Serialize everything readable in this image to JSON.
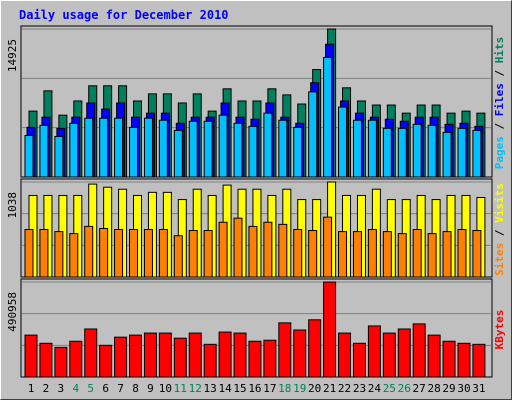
{
  "title": "Daily usage for December 2010",
  "legend_separator": " / ",
  "chart_data": [
    {
      "type": "bar",
      "ylim": [
        0,
        14925
      ],
      "yticks": [
        14925
      ],
      "series": [
        {
          "name": "Pages",
          "color": "#00C0FF",
          "values": [
            4190,
            5212,
            4088,
            5417,
            5928,
            5928,
            5928,
            5008,
            5928,
            5723,
            4701,
            5621,
            5621,
            6234,
            5417,
            5110,
            6439,
            5723,
            5008,
            8585,
            12060,
            7052,
            5723,
            5723,
            4906,
            4906,
            5314,
            5212,
            4497,
            4906,
            4701
          ]
        },
        {
          "name": "Files",
          "color": "#0000FF",
          "values": [
            5008,
            6030,
            4906,
            6030,
            7461,
            6847,
            7461,
            6030,
            6439,
            6439,
            5417,
            6030,
            6030,
            7461,
            6030,
            5825,
            7461,
            6030,
            5417,
            9505,
            13388,
            7665,
            6439,
            6030,
            5825,
            5621,
            6030,
            6030,
            5314,
            5417,
            5110
          ]
        },
        {
          "name": "Hits",
          "color": "#00805C",
          "values": [
            6645,
            8690,
            6236,
            7667,
            9200,
            9200,
            9200,
            7667,
            8383,
            8383,
            7463,
            8383,
            6645,
            8894,
            7667,
            7667,
            8894,
            8281,
            7360,
            10836,
            14925,
            8996,
            7667,
            7258,
            7258,
            6440,
            7258,
            7258,
            6440,
            6645,
            6440
          ]
        }
      ]
    },
    {
      "type": "bar",
      "ylim": [
        0,
        1038
      ],
      "yticks": [
        1038
      ],
      "series": [
        {
          "name": "Sites",
          "color": "#FF8000",
          "values": [
            519,
            519,
            496,
            474,
            553,
            530,
            519,
            519,
            519,
            519,
            451,
            508,
            508,
            598,
            643,
            553,
            598,
            575,
            519,
            508,
            654,
            496,
            496,
            519,
            496,
            474,
            519,
            474,
            496,
            519,
            508
          ]
        },
        {
          "name": "Visits",
          "color": "#FFFF00",
          "values": [
            891,
            891,
            891,
            891,
            1015,
            981,
            959,
            891,
            925,
            925,
            846,
            959,
            891,
            1004,
            959,
            959,
            891,
            959,
            846,
            846,
            1038,
            891,
            891,
            959,
            846,
            846,
            891,
            846,
            891,
            891,
            869
          ]
        }
      ]
    },
    {
      "type": "bar",
      "ylim": [
        0,
        490958
      ],
      "yticks": [
        490958
      ],
      "categories": [
        "1",
        "2",
        "3",
        "4",
        "5",
        "6",
        "7",
        "8",
        "9",
        "10",
        "11",
        "12",
        "13",
        "14",
        "15",
        "16",
        "17",
        "18",
        "19",
        "20",
        "21",
        "22",
        "23",
        "24",
        "25",
        "26",
        "27",
        "28",
        "29",
        "30",
        "31"
      ],
      "category_colors": [
        "#000000",
        "#000000",
        "#000000",
        "#00805C",
        "#00805C",
        "#000000",
        "#000000",
        "#000000",
        "#000000",
        "#000000",
        "#00805C",
        "#00805C",
        "#000000",
        "#000000",
        "#000000",
        "#000000",
        "#000000",
        "#00805C",
        "#00805C",
        "#000000",
        "#000000",
        "#000000",
        "#000000",
        "#000000",
        "#00805C",
        "#00805C",
        "#000000",
        "#000000",
        "#000000",
        "#000000",
        "#000000"
      ],
      "series": [
        {
          "name": "KBytes",
          "color": "#FF0000",
          "values": [
            216439,
            174207,
            153091,
            184765,
            248113,
            163649,
            205881,
            216439,
            226997,
            226997,
            200602,
            226997,
            168928,
            232276,
            226997,
            184765,
            190044,
            279787,
            242834,
            295624,
            490958,
            226997,
            174207,
            263950,
            226997,
            248113,
            274508,
            216439,
            184765,
            174207,
            168928
          ]
        }
      ]
    }
  ]
}
